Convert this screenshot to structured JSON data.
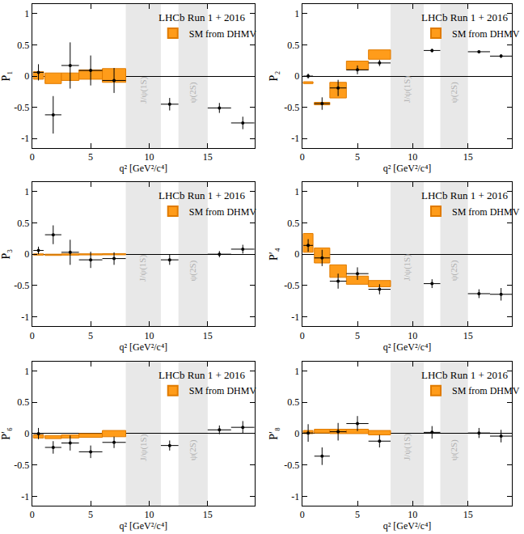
{
  "chart_data": [
    {
      "type": "scatter",
      "y_label": "P₁",
      "x_label": "q² [GeV²/c⁴]",
      "annotation": "LHCb Run 1 + 2016",
      "xlim": [
        0,
        19
      ],
      "ylim": [
        -1.15,
        1.15
      ],
      "xticks": [
        0,
        5,
        10,
        15
      ],
      "yticks": [
        -1,
        -0.5,
        0,
        0.5,
        1
      ],
      "grid": false,
      "bands": [
        {
          "label": "J/ψ(1S)",
          "x": [
            8,
            11
          ],
          "color": "#e8e8e8"
        },
        {
          "label": "ψ(2S)",
          "x": [
            12.5,
            15
          ],
          "color": "#e8e8e8"
        }
      ],
      "series": [
        {
          "name": "SM from DHMV",
          "type": "bar",
          "color": "#ff9c1a",
          "x_low": [
            0.1,
            1.1,
            2.5,
            4,
            6
          ],
          "x_high": [
            0.98,
            2.5,
            4,
            6,
            8
          ],
          "low": [
            -0.05,
            -0.12,
            -0.07,
            -0.05,
            -0.1
          ],
          "high": [
            0.07,
            0.05,
            0.05,
            0.1,
            0.12
          ]
        },
        {
          "type": "scatter",
          "marker": "circle",
          "color": "#000000",
          "x": [
            0.54,
            1.8,
            3.25,
            5,
            7,
            11.75,
            16,
            18
          ],
          "x_errors": [
            0.44,
            0.7,
            0.75,
            1,
            1,
            0.75,
            1,
            1
          ],
          "values": [
            0.06,
            -0.62,
            0.17,
            0.09,
            -0.07,
            -0.45,
            -0.51,
            -0.75
          ],
          "errors": [
            0.13,
            0.3,
            0.37,
            0.24,
            0.2,
            0.1,
            0.08,
            0.1
          ]
        }
      ]
    },
    {
      "type": "scatter",
      "y_label": "P₂",
      "x_label": "q² [GeV²/c⁴]",
      "annotation": "LHCb Run 1 + 2016",
      "xlim": [
        0,
        19
      ],
      "ylim": [
        -1.15,
        1.15
      ],
      "xticks": [
        0,
        5,
        10,
        15
      ],
      "yticks": [
        -1,
        -0.5,
        0,
        0.5,
        1
      ],
      "grid": false,
      "bands": [
        {
          "label": "J/ψ(1S)",
          "x": [
            8,
            11
          ],
          "color": "#e8e8e8"
        },
        {
          "label": "ψ(2S)",
          "x": [
            12.5,
            15
          ],
          "color": "#e8e8e8"
        }
      ],
      "series": [
        {
          "name": "SM from DHMV",
          "type": "bar",
          "color": "#ff9c1a",
          "x_low": [
            0.1,
            1.1,
            2.5,
            4,
            6
          ],
          "x_high": [
            0.98,
            2.5,
            4,
            6,
            8
          ],
          "low": [
            -0.12,
            -0.46,
            -0.35,
            0.1,
            0.27
          ],
          "high": [
            -0.09,
            -0.42,
            -0.1,
            0.24,
            0.42
          ]
        },
        {
          "type": "scatter",
          "marker": "circle",
          "color": "#000000",
          "x": [
            0.54,
            1.8,
            3.25,
            5,
            7,
            11.75,
            16,
            18
          ],
          "x_errors": [
            0.44,
            0.7,
            0.75,
            1,
            1,
            0.75,
            1,
            1
          ],
          "values": [
            0.0,
            -0.44,
            -0.19,
            0.1,
            0.21,
            0.41,
            0.39,
            0.32
          ],
          "errors": [
            0.04,
            0.1,
            0.13,
            0.07,
            0.05,
            0.03,
            0.02,
            0.03
          ]
        }
      ]
    },
    {
      "type": "scatter",
      "y_label": "P₃",
      "x_label": "q² [GeV²/c⁴]",
      "annotation": "LHCb Run 1 + 2016",
      "xlim": [
        0,
        19
      ],
      "ylim": [
        -1.15,
        1.15
      ],
      "xticks": [
        0,
        5,
        10,
        15
      ],
      "yticks": [
        -1,
        -0.5,
        0,
        0.5,
        1
      ],
      "grid": false,
      "bands": [
        {
          "label": "J/ψ(1S)",
          "x": [
            8,
            11
          ],
          "color": "#e8e8e8"
        },
        {
          "label": "ψ(2S)",
          "x": [
            12.5,
            15
          ],
          "color": "#e8e8e8"
        }
      ],
      "series": [
        {
          "name": "SM from DHMV",
          "type": "bar",
          "color": "#ff9c1a",
          "x_low": [
            0.1,
            1.1,
            2.5,
            4,
            6
          ],
          "x_high": [
            0.98,
            2.5,
            4,
            6,
            8
          ],
          "low": [
            -0.015,
            -0.02,
            -0.015,
            -0.012,
            -0.01
          ],
          "high": [
            0.005,
            0.0,
            0.005,
            0.006,
            0.008
          ]
        },
        {
          "type": "scatter",
          "marker": "circle",
          "color": "#000000",
          "x": [
            0.54,
            1.8,
            3.25,
            5,
            7,
            11.75,
            16,
            18
          ],
          "x_errors": [
            0.44,
            0.7,
            0.75,
            1,
            1,
            0.75,
            1,
            1
          ],
          "values": [
            0.06,
            0.31,
            0.03,
            -0.09,
            -0.07,
            -0.09,
            0.0,
            0.08
          ],
          "errors": [
            0.06,
            0.15,
            0.2,
            0.13,
            0.1,
            0.08,
            0.05,
            0.07
          ]
        }
      ]
    },
    {
      "type": "scatter",
      "y_label": "P′₄",
      "x_label": "q² [GeV²/c⁴]",
      "annotation": "LHCb Run 1 + 2016",
      "xlim": [
        0,
        19
      ],
      "ylim": [
        -1.15,
        1.15
      ],
      "xticks": [
        0,
        5,
        10,
        15
      ],
      "yticks": [
        -1,
        -0.5,
        0,
        0.5,
        1
      ],
      "grid": false,
      "bands": [
        {
          "label": "J/ψ(1S)",
          "x": [
            8,
            11
          ],
          "color": "#e8e8e8"
        },
        {
          "label": "ψ(2S)",
          "x": [
            12.5,
            15
          ],
          "color": "#e8e8e8"
        }
      ],
      "series": [
        {
          "name": "SM from DHMV",
          "type": "bar",
          "color": "#ff9c1a",
          "x_low": [
            0.1,
            1.1,
            2.5,
            4,
            6
          ],
          "x_high": [
            0.98,
            2.5,
            4,
            6,
            8
          ],
          "low": [
            0.03,
            -0.14,
            -0.37,
            -0.48,
            -0.52
          ],
          "high": [
            0.33,
            0.1,
            -0.17,
            -0.35,
            -0.42
          ]
        },
        {
          "type": "scatter",
          "marker": "circle",
          "color": "#000000",
          "x": [
            0.54,
            1.8,
            3.25,
            5,
            7,
            11.75,
            16,
            18
          ],
          "x_errors": [
            0.44,
            0.7,
            0.75,
            1,
            1,
            0.75,
            1,
            1
          ],
          "values": [
            0.14,
            -0.06,
            -0.43,
            -0.31,
            -0.56,
            -0.47,
            -0.63,
            -0.64
          ],
          "errors": [
            0.1,
            0.13,
            0.12,
            0.1,
            0.08,
            0.07,
            0.07,
            0.1
          ]
        }
      ]
    },
    {
      "type": "scatter",
      "y_label": "P′₆",
      "x_label": "q² [GeV²/c⁴]",
      "annotation": "LHCb Run 1 + 2016",
      "xlim": [
        0,
        19
      ],
      "ylim": [
        -1.15,
        1.15
      ],
      "xticks": [
        0,
        5,
        10,
        15
      ],
      "yticks": [
        -1,
        -0.5,
        0,
        0.5,
        1
      ],
      "grid": false,
      "bands": [
        {
          "label": "J/ψ(1S)",
          "x": [
            8,
            11
          ],
          "color": "#e8e8e8"
        },
        {
          "label": "ψ(2S)",
          "x": [
            12.5,
            15
          ],
          "color": "#e8e8e8"
        }
      ],
      "series": [
        {
          "name": "SM from DHMV",
          "type": "bar",
          "color": "#ff9c1a",
          "x_low": [
            0.1,
            1.1,
            2.5,
            4,
            6
          ],
          "x_high": [
            0.98,
            2.5,
            4,
            6,
            8
          ],
          "low": [
            -0.07,
            -0.08,
            -0.07,
            -0.06,
            -0.05
          ],
          "high": [
            -0.02,
            -0.03,
            -0.02,
            0.0,
            0.05
          ]
        },
        {
          "type": "scatter",
          "marker": "circle",
          "color": "#000000",
          "x": [
            0.54,
            1.8,
            3.25,
            5,
            7,
            11.75,
            16,
            18
          ],
          "x_errors": [
            0.44,
            0.7,
            0.75,
            1,
            1,
            0.75,
            1,
            1
          ],
          "values": [
            0.0,
            -0.22,
            -0.15,
            -0.29,
            -0.14,
            -0.19,
            0.06,
            0.1
          ],
          "errors": [
            0.09,
            0.1,
            0.12,
            0.1,
            0.09,
            0.08,
            0.07,
            0.1
          ]
        }
      ]
    },
    {
      "type": "scatter",
      "y_label": "P′₈",
      "x_label": "q² [GeV²/c⁴]",
      "annotation": "LHCb Run 1 + 2016",
      "xlim": [
        0,
        19
      ],
      "ylim": [
        -1.15,
        1.15
      ],
      "xticks": [
        0,
        5,
        10,
        15
      ],
      "yticks": [
        -1,
        -0.5,
        0,
        0.5,
        1
      ],
      "grid": false,
      "bands": [
        {
          "label": "J/ψ(1S)",
          "x": [
            8,
            11
          ],
          "color": "#e8e8e8"
        },
        {
          "label": "ψ(2S)",
          "x": [
            12.5,
            15
          ],
          "color": "#e8e8e8"
        }
      ],
      "series": [
        {
          "name": "SM from DHMV",
          "type": "bar",
          "color": "#ff9c1a",
          "x_low": [
            0.1,
            1.1,
            2.5,
            4,
            6
          ],
          "x_high": [
            0.98,
            2.5,
            4,
            6,
            8
          ],
          "low": [
            0.0,
            0.01,
            0.0,
            0.0,
            -0.02
          ],
          "high": [
            0.05,
            0.07,
            0.07,
            0.07,
            0.05
          ]
        },
        {
          "type": "scatter",
          "marker": "circle",
          "color": "#000000",
          "x": [
            0.54,
            1.8,
            3.25,
            5,
            7,
            11.75,
            16,
            18
          ],
          "x_errors": [
            0.44,
            0.7,
            0.75,
            1,
            1,
            0.75,
            1,
            1
          ],
          "values": [
            0.01,
            -0.36,
            0.03,
            0.16,
            -0.12,
            0.02,
            0.01,
            -0.04
          ],
          "errors": [
            0.14,
            0.14,
            0.14,
            0.12,
            0.1,
            0.1,
            0.08,
            0.1
          ]
        }
      ]
    }
  ]
}
